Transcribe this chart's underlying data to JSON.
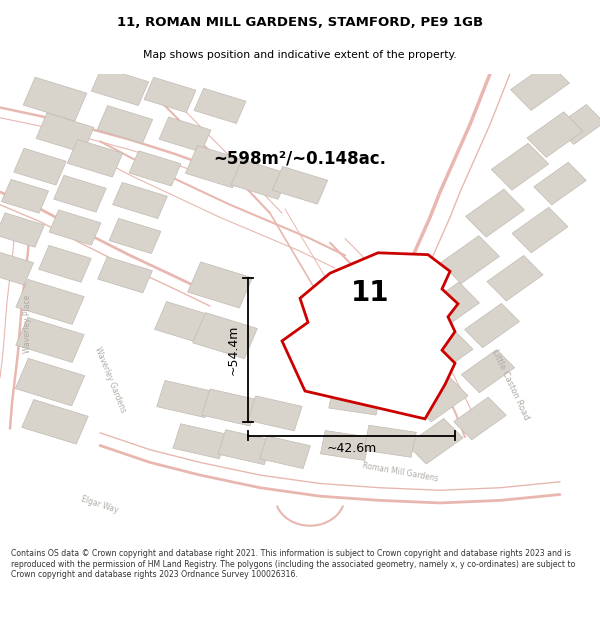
{
  "title_line1": "11, ROMAN MILL GARDENS, STAMFORD, PE9 1GB",
  "title_line2": "Map shows position and indicative extent of the property.",
  "area_text": "~598m²/~0.148ac.",
  "width_label": "~42.6m",
  "height_label": "~54.4m",
  "number_label": "11",
  "footer_text": "Contains OS data © Crown copyright and database right 2021. This information is subject to Crown copyright and database rights 2023 and is reproduced with the permission of HM Land Registry. The polygons (including the associated geometry, namely x, y co-ordinates) are subject to Crown copyright and database rights 2023 Ordnance Survey 100026316.",
  "map_bg": "#f2eeea",
  "building_color": "#d8d4cc",
  "building_edge": "#c0bbb3",
  "road_color": "#e8b8b0",
  "plot_color": "#cc0000",
  "street_label_color": "#b0aba5",
  "title_color": "#000000",
  "footer_color": "#333333",
  "dim_line_color": "#000000"
}
